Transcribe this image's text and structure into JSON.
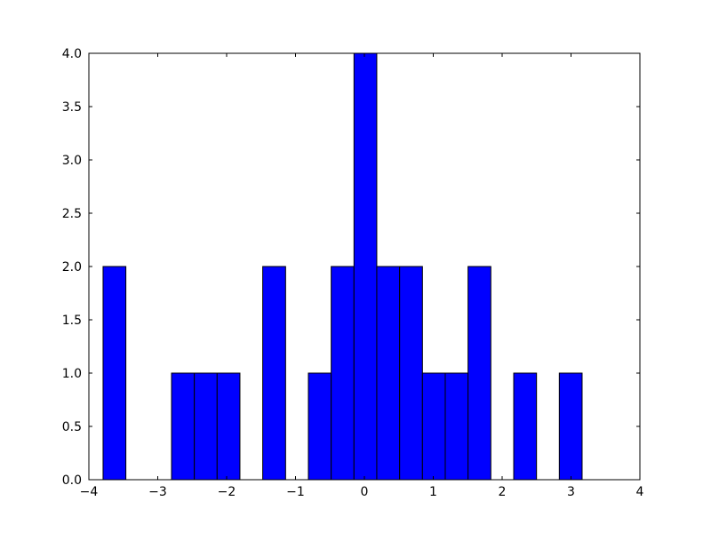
{
  "chart_data": {
    "type": "histogram",
    "bins": [
      -3.794,
      -3.463,
      -3.132,
      -2.8,
      -2.469,
      -2.138,
      -1.807,
      -1.476,
      -1.144,
      -0.813,
      -0.482,
      -0.151,
      0.18,
      0.512,
      0.843,
      1.174,
      1.505,
      1.836,
      2.168,
      2.499,
      2.83,
      3.161
    ],
    "values": [
      2,
      0,
      0,
      1,
      1,
      1,
      0,
      2,
      0,
      1,
      2,
      4,
      2,
      2,
      1,
      1,
      2,
      0,
      1,
      0,
      1
    ],
    "color": "#0000ff",
    "xlim": [
      -4,
      4
    ],
    "xticks": [
      {
        "value": -4,
        "label": "−4"
      },
      {
        "value": -3,
        "label": "−3"
      },
      {
        "value": -2,
        "label": "−2"
      },
      {
        "value": -1,
        "label": "−1"
      },
      0,
      1,
      2,
      3,
      4
    ],
    "ylim": [
      0,
      4
    ],
    "yticks": [
      {
        "value": 0,
        "label": "0.0"
      },
      0.5,
      {
        "value": 1,
        "label": "1.0"
      },
      1.5,
      {
        "value": 2,
        "label": "2.0"
      },
      2.5,
      {
        "value": 3,
        "label": "3.0"
      },
      3.5,
      {
        "value": 4,
        "label": "4.0"
      }
    ]
  }
}
